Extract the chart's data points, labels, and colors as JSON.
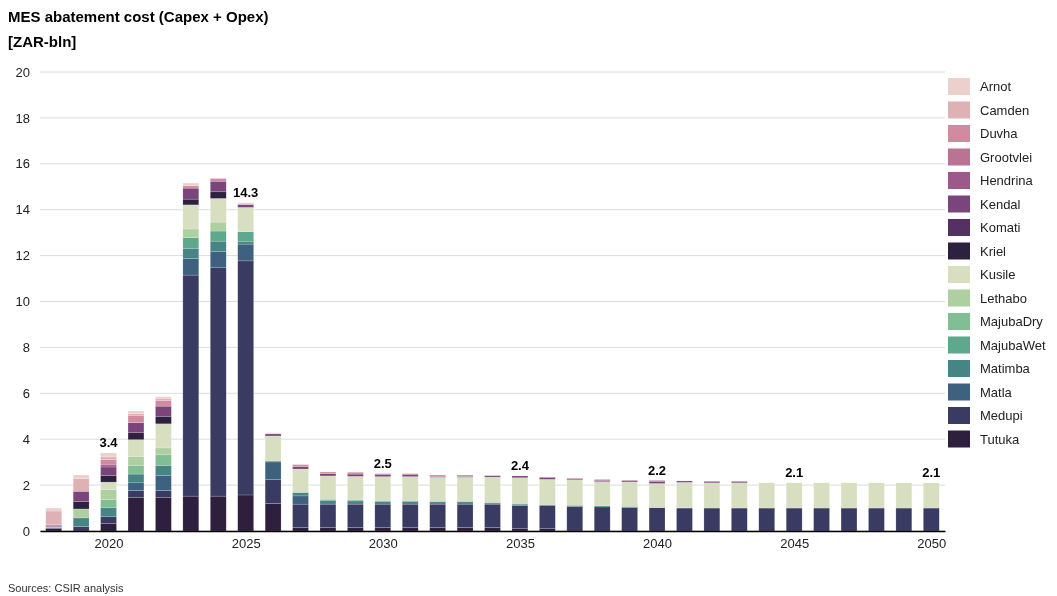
{
  "chart_data": {
    "type": "bar",
    "title": "MES abatement cost (Capex + Opex)",
    "subtitle": "[ZAR-bln]",
    "annotations": [
      "Sources: CSIR analysis"
    ],
    "x": [
      2018,
      2019,
      2020,
      2021,
      2022,
      2023,
      2024,
      2025,
      2026,
      2027,
      2028,
      2029,
      2030,
      2031,
      2032,
      2033,
      2034,
      2035,
      2036,
      2037,
      2038,
      2039,
      2040,
      2041,
      2042,
      2043,
      2044,
      2045,
      2046,
      2047,
      2048,
      2049,
      2050
    ],
    "xlim": [
      2017.5,
      2050.5
    ],
    "xticks": [
      2020,
      2025,
      2030,
      2035,
      2040,
      2045,
      2050
    ],
    "ylim": [
      0,
      20
    ],
    "yticks": [
      0,
      2,
      4,
      6,
      8,
      10,
      12,
      14,
      16,
      18,
      20
    ],
    "grid": "y",
    "legend": "right",
    "stacked": true,
    "totals": [
      null,
      null,
      "3.4",
      null,
      null,
      null,
      null,
      "14.3",
      null,
      null,
      null,
      null,
      "2.5",
      null,
      null,
      null,
      null,
      "2.4",
      null,
      null,
      null,
      null,
      "2.2",
      null,
      null,
      null,
      null,
      "2.1",
      null,
      null,
      null,
      null,
      "2.1"
    ],
    "series": [
      {
        "name": "Tutuka",
        "color": "#2e1f3e",
        "values": [
          0.1,
          0,
          0.32,
          1.45,
          1.45,
          1.52,
          1.52,
          1.57,
          1.2,
          0.15,
          0.15,
          0.15,
          0.15,
          0.15,
          0.15,
          0.15,
          0.15,
          0.1,
          0.1,
          0,
          0,
          0,
          0,
          0,
          0,
          0,
          0,
          0,
          0,
          0,
          0,
          0,
          0
        ]
      },
      {
        "name": "Medupi",
        "color": "#3a3b62",
        "values": [
          0.03,
          0.19,
          0.3,
          0.32,
          0.32,
          9.63,
          9.95,
          10.2,
          1.05,
          1.02,
          1.02,
          1.02,
          1.02,
          1.02,
          1.02,
          1.02,
          1.02,
          1.02,
          1.02,
          1.06,
          1.05,
          1.02,
          1.02,
          1.0,
          1.0,
          1.0,
          1.0,
          1.0,
          1.0,
          1.0,
          1.0,
          1.0,
          1.0
        ]
      },
      {
        "name": "Matla",
        "color": "#3d617f",
        "values": [
          0,
          0,
          0,
          0.33,
          0.64,
          0.73,
          0.7,
          0.73,
          0.76,
          0.36,
          0,
          0,
          0,
          0,
          0,
          0,
          0,
          0,
          0,
          0,
          0,
          0,
          0,
          0,
          0,
          0,
          0,
          0,
          0,
          0,
          0,
          0,
          0
        ]
      },
      {
        "name": "Matimba",
        "color": "#468485",
        "values": [
          0.03,
          0.38,
          0.39,
          0.38,
          0.45,
          0.44,
          0.46,
          0.1,
          0.04,
          0.15,
          0.17,
          0.14,
          0.12,
          0.12,
          0.1,
          0.1,
          0.05,
          0.05,
          0.03,
          0.06,
          0.05,
          0.05,
          0,
          0,
          0,
          0,
          0,
          0,
          0,
          0,
          0,
          0,
          0
        ]
      },
      {
        "name": "MajubaWet",
        "color": "#5ea88d",
        "values": [
          0,
          0,
          0,
          0,
          0,
          0.46,
          0.44,
          0.44,
          0,
          0,
          0.04,
          0.04,
          0.04,
          0.04,
          0.03,
          0.03,
          0.03,
          0.03,
          0,
          0,
          0,
          0,
          0,
          0.02,
          0,
          0,
          0,
          0,
          0,
          0,
          0,
          0,
          0
        ]
      },
      {
        "name": "MajubaDry",
        "color": "#82be93",
        "values": [
          0,
          0,
          0.36,
          0.38,
          0.46,
          0,
          0,
          0,
          0,
          0,
          0,
          0,
          0,
          0,
          0,
          0,
          0,
          0,
          0,
          0,
          0,
          0,
          0,
          0,
          0,
          0,
          0,
          0,
          0,
          0,
          0,
          0,
          0
        ]
      },
      {
        "name": "Lethabo",
        "color": "#aed0a1",
        "values": [
          0.03,
          0.39,
          0.44,
          0.39,
          0.3,
          0.38,
          0.39,
          0,
          0,
          0,
          0,
          0,
          0,
          0,
          0,
          0,
          0,
          0,
          0,
          0,
          0,
          0,
          0,
          0,
          0,
          0,
          0,
          0,
          0,
          0,
          0,
          0,
          0
        ]
      },
      {
        "name": "Kusile",
        "color": "#d8dfc0",
        "values": [
          0,
          0,
          0.32,
          0.73,
          1.05,
          1.05,
          1.03,
          1.06,
          1.09,
          1.02,
          1.02,
          1.03,
          1.04,
          1.04,
          1.04,
          1.04,
          1.1,
          1.12,
          1.1,
          1.1,
          1.05,
          1.07,
          1.05,
          1.1,
          1.1,
          1.1,
          1.1,
          1.1,
          1.1,
          1.1,
          1.1,
          1.1,
          1.1
        ]
      },
      {
        "name": "Kriel",
        "color": "#2e2140",
        "values": [
          0,
          0.32,
          0.28,
          0.3,
          0.33,
          0.25,
          0.29,
          0,
          0,
          0,
          0,
          0,
          0,
          0,
          0,
          0,
          0,
          0,
          0,
          0,
          0,
          0,
          0,
          0,
          0,
          0,
          0,
          0,
          0,
          0,
          0,
          0,
          0
        ]
      },
      {
        "name": "Komati",
        "color": "#543162",
        "values": [
          0,
          0,
          0,
          0,
          0,
          0,
          0,
          0,
          0,
          0,
          0,
          0,
          0,
          0,
          0,
          0,
          0,
          0,
          0,
          0,
          0,
          0,
          0,
          0,
          0,
          0,
          0,
          0,
          0,
          0,
          0,
          0,
          0
        ]
      },
      {
        "name": "Kendal",
        "color": "#7a457b",
        "values": [
          0.05,
          0.45,
          0.38,
          0.44,
          0.44,
          0.48,
          0.46,
          0.13,
          0.09,
          0.1,
          0.1,
          0.1,
          0.1,
          0.1,
          0.04,
          0.04,
          0.06,
          0.08,
          0.07,
          0.04,
          0.05,
          0.06,
          0.08,
          0.06,
          0.06,
          0.06,
          0,
          0,
          0,
          0,
          0,
          0,
          0
        ]
      },
      {
        "name": "Hendrina",
        "color": "#9b5a8a",
        "values": [
          0.03,
          0,
          0.09,
          0,
          0,
          0,
          0,
          0,
          0,
          0,
          0,
          0,
          0,
          0,
          0,
          0,
          0,
          0,
          0.03,
          0.03,
          0.04,
          0,
          0.05,
          0,
          0,
          0,
          0,
          0,
          0,
          0,
          0,
          0,
          0
        ]
      },
      {
        "name": "Grootvlei",
        "color": "#b97393",
        "values": [
          0,
          0,
          0,
          0,
          0,
          0,
          0,
          0,
          0,
          0,
          0,
          0,
          0,
          0,
          0,
          0,
          0,
          0,
          0,
          0,
          0,
          0,
          0,
          0,
          0,
          0,
          0,
          0,
          0,
          0,
          0,
          0,
          0
        ]
      },
      {
        "name": "Duvha",
        "color": "#d08ba0",
        "values": [
          0,
          0,
          0.23,
          0.3,
          0.25,
          0.1,
          0.12,
          0,
          0,
          0.09,
          0.07,
          0.08,
          0.03,
          0.03,
          0.06,
          0.06,
          0,
          0,
          0,
          0,
          0,
          0,
          0,
          0,
          0,
          0,
          0,
          0,
          0,
          0,
          0,
          0,
          0
        ]
      },
      {
        "name": "Camden",
        "color": "#e0b1b4",
        "values": [
          0.6,
          0.55,
          0.12,
          0.1,
          0.09,
          0,
          0,
          0,
          0,
          0,
          0,
          0,
          0,
          0,
          0,
          0,
          0,
          0,
          0,
          0,
          0,
          0,
          0,
          0,
          0,
          0,
          0,
          0,
          0,
          0,
          0,
          0,
          0
        ]
      },
      {
        "name": "Arnot",
        "color": "#ecd0cc",
        "values": [
          0.13,
          0.16,
          0.17,
          0.11,
          0.07,
          0.12,
          0,
          0.07,
          0.05,
          0.03,
          0,
          0,
          0,
          0,
          0,
          0,
          0,
          0,
          0,
          0,
          0,
          0,
          0,
          0,
          0,
          0,
          0,
          0,
          0,
          0,
          0,
          0,
          0
        ]
      }
    ]
  }
}
